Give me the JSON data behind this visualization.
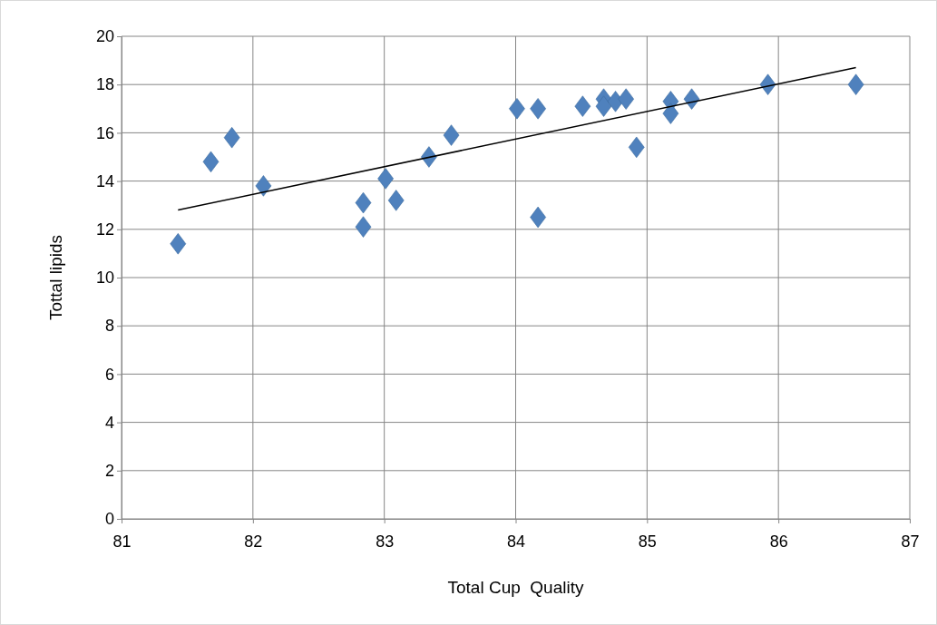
{
  "chart_data": {
    "type": "scatter",
    "xlabel": "Total Cup  Quality",
    "ylabel": "Tottal lipids",
    "xlim": [
      81,
      87
    ],
    "xticks": [
      81,
      82,
      83,
      84,
      85,
      86,
      87
    ],
    "ylim": [
      0,
      20
    ],
    "yticks": [
      0,
      2,
      4,
      6,
      8,
      10,
      12,
      14,
      16,
      18,
      20
    ],
    "grid": true,
    "series": [
      {
        "color": "#4f81bd",
        "marker": "diamond",
        "x": [
          81.43,
          81.68,
          81.84,
          82.08,
          82.84,
          82.84,
          83.01,
          83.09,
          83.34,
          83.51,
          84.01,
          84.17,
          84.17,
          84.51,
          84.67,
          84.67,
          84.76,
          84.84,
          84.92,
          85.18,
          85.18,
          85.34,
          85.92,
          86.59
        ],
        "values": [
          11.4,
          14.8,
          15.8,
          13.8,
          13.1,
          12.1,
          14.1,
          13.2,
          15.0,
          15.9,
          17.0,
          17.0,
          12.5,
          17.1,
          17.4,
          17.1,
          17.3,
          17.4,
          15.4,
          17.3,
          16.8,
          17.4,
          18.0,
          18.0
        ]
      },
      {
        "type": "line",
        "color": "#000000",
        "marker": "none",
        "x": [
          81.43,
          86.59
        ],
        "values": [
          12.8,
          18.7
        ]
      }
    ]
  }
}
